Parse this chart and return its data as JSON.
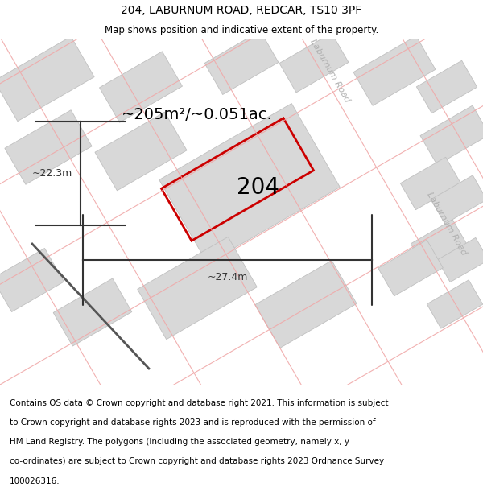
{
  "title": "204, LABURNUM ROAD, REDCAR, TS10 3PF",
  "subtitle": "Map shows position and indicative extent of the property.",
  "footer_line1": "Contains OS data © Crown copyright and database right 2021. This information is subject",
  "footer_line2": "to Crown copyright and database rights 2023 and is reproduced with the permission of",
  "footer_line3": "HM Land Registry. The polygons (including the associated geometry, namely x, y",
  "footer_line4": "co-ordinates) are subject to Crown copyright and database rights 2023 Ordnance Survey",
  "footer_line5": "100026316.",
  "area_label": "~205m²/~0.051ac.",
  "property_number": "204",
  "dim_width": "~27.4m",
  "dim_height": "~22.3m",
  "road_label_top": "Laburnum Road",
  "road_label_right": "Laburnum Road",
  "red_plot_color": "#cc0000",
  "dim_color": "#333333",
  "block_color": "#d8d8d8",
  "block_edge": "#c0c0c0",
  "road_line_color": "#f0a8a8",
  "road_label_color": "#b0b0b0",
  "dark_road_color": "#888888",
  "title_fontsize": 10,
  "subtitle_fontsize": 8.5,
  "footer_fontsize": 7.5,
  "area_fontsize": 14,
  "number_fontsize": 20,
  "dim_fontsize": 9
}
